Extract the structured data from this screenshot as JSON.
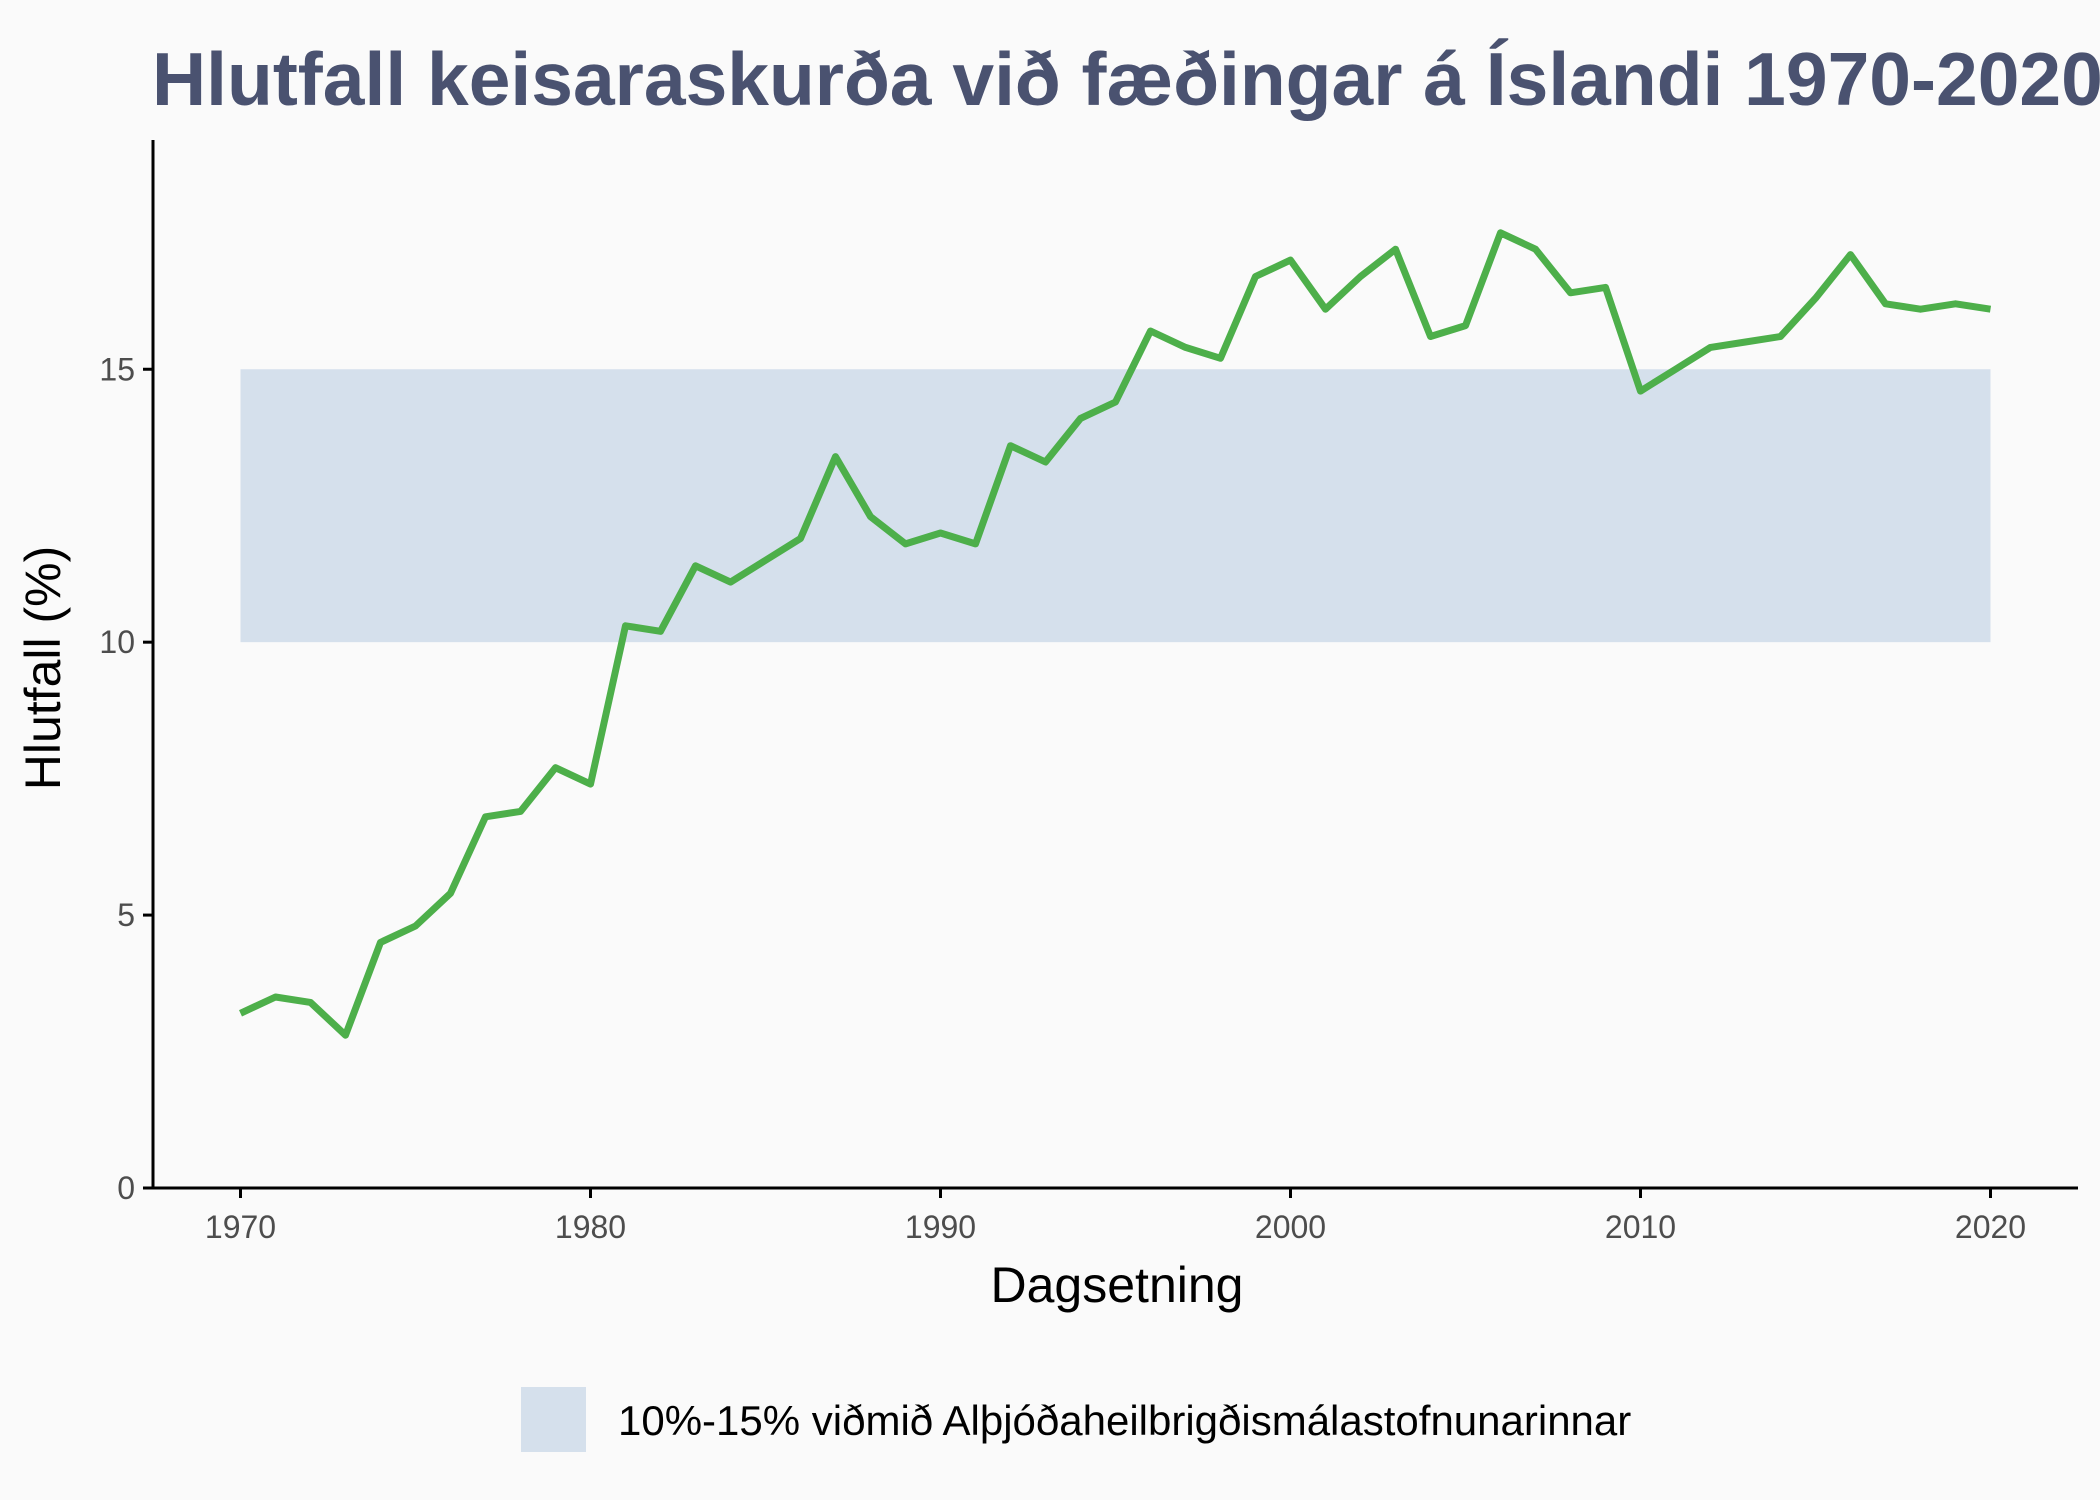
{
  "colors": {
    "background": "#fafafa",
    "line": "#4daf4a",
    "band": "#d5e0ec",
    "title": "#4a5270",
    "axis": "#000000",
    "tick_text": "#4d4d4d"
  },
  "chart_data": {
    "type": "line",
    "title": "Hlutfall keisaraskurða við fæðingar á Íslandi 1970-2020",
    "xlabel": "Dagsetning",
    "ylabel": "Hlutfall (%)",
    "xlim": [
      1967.5,
      2022.5
    ],
    "ylim": [
      0,
      19.2
    ],
    "x_ticks": [
      1970,
      1980,
      1990,
      2000,
      2010,
      2020
    ],
    "y_ticks": [
      0,
      5,
      10,
      15
    ],
    "grid": false,
    "legend_position": "bottom",
    "band": {
      "label": "10%-15% viðmið Alþjóðaheilbrigðismálastofnunarinnar",
      "x_start": 1970,
      "x_end": 2020,
      "y_low": 10,
      "y_high": 15
    },
    "series": [
      {
        "x": [
          1970,
          1971,
          1972,
          1973,
          1974,
          1975,
          1976,
          1977,
          1978,
          1979,
          1980,
          1981,
          1982,
          1983,
          1984,
          1985,
          1986,
          1987,
          1988,
          1989,
          1990,
          1991,
          1992,
          1993,
          1994,
          1995,
          1996,
          1997,
          1998,
          1999,
          2000,
          2001,
          2002,
          2003,
          2004,
          2005,
          2006,
          2007,
          2008,
          2009,
          2010,
          2011,
          2012,
          2013,
          2014,
          2015,
          2016,
          2017,
          2018,
          2019,
          2020
        ],
        "values": [
          3.2,
          3.5,
          3.4,
          2.8,
          4.5,
          4.8,
          5.4,
          6.8,
          6.9,
          7.7,
          7.4,
          10.3,
          10.2,
          11.4,
          11.1,
          11.5,
          11.9,
          13.4,
          12.3,
          11.8,
          12.0,
          11.8,
          13.6,
          13.3,
          14.1,
          14.4,
          15.7,
          15.4,
          15.2,
          16.7,
          17.0,
          16.1,
          16.7,
          17.2,
          15.6,
          15.8,
          17.5,
          17.2,
          16.4,
          16.5,
          14.6,
          15.0,
          15.4,
          15.5,
          15.6,
          16.3,
          17.1,
          16.2,
          16.1,
          16.2,
          16.1
        ]
      }
    ]
  }
}
